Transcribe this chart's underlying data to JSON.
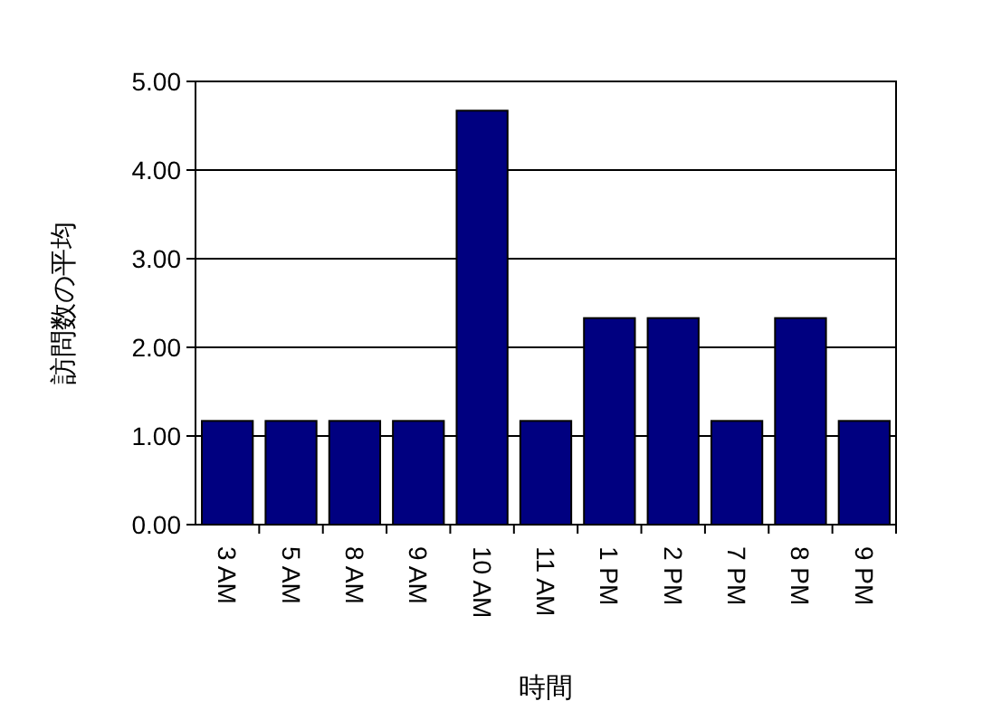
{
  "chart_data": {
    "type": "bar",
    "xlabel": "時間",
    "ylabel": "訪問数の平均",
    "categories": [
      "3 AM",
      "5 AM",
      "8 AM",
      "9 AM",
      "10 AM",
      "11 AM",
      "1 PM",
      "2 PM",
      "7 PM",
      "8 PM",
      "9 PM"
    ],
    "values": [
      1.17,
      1.17,
      1.17,
      1.17,
      4.67,
      1.17,
      2.33,
      2.33,
      1.17,
      2.33,
      1.17
    ],
    "color": "#000080",
    "ylim": [
      0,
      5
    ],
    "yticks": [
      {
        "value": 0,
        "label": "0.00"
      },
      {
        "value": 1,
        "label": "1.00"
      },
      {
        "value": 2,
        "label": "2.00"
      },
      {
        "value": 3,
        "label": "3.00"
      },
      {
        "value": 4,
        "label": "4.00"
      },
      {
        "value": 5,
        "label": "5.00"
      }
    ],
    "grid": "y"
  }
}
